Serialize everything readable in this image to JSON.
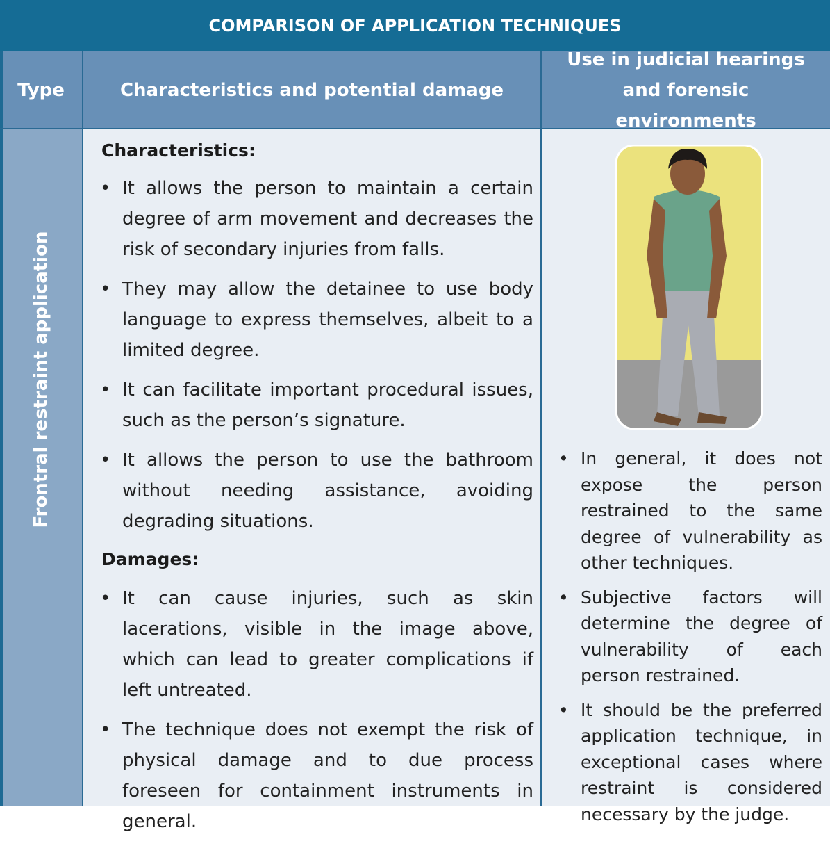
{
  "table": {
    "title": "COMPARISON OF APPLICATION TECHNIQUES",
    "headers": [
      "Type",
      "Characteristics and potential damage",
      "Use in judicial hearings and forensic environments"
    ],
    "rows": [
      {
        "type": "Frontral restraint application",
        "characteristics_heading": "Characteristics:",
        "characteristics": [
          "It allows the person to maintain a certain degree of arm movement and decreases the risk of secondary injuries from falls.",
          "They may allow the detainee to use body language to express themselves, albeit to a limited degree.",
          "It can facilitate important procedural issues, such as the person’s signature.",
          "It allows the person to use the bathroom without needing assistance, avoiding degrading situations."
        ],
        "damages_heading": "Damages:",
        "damages": [
          "It can cause injuries, such as skin lacerations, visible in the image above, which can lead to greater complications if left untreated.",
          "The technique does not exempt the risk of physical damage and to due process foreseen for containment instruments in general."
        ],
        "judicial_use": [
          "In general, it does not expose the person restrained to the same degree of vulnerability as other techniques.",
          "Subjective factors will determine the degree of vulnerability of each person restrained.",
          "It should be the preferred application technique, in exceptional cases where restraint is considered necessary by the judge."
        ]
      }
    ]
  }
}
